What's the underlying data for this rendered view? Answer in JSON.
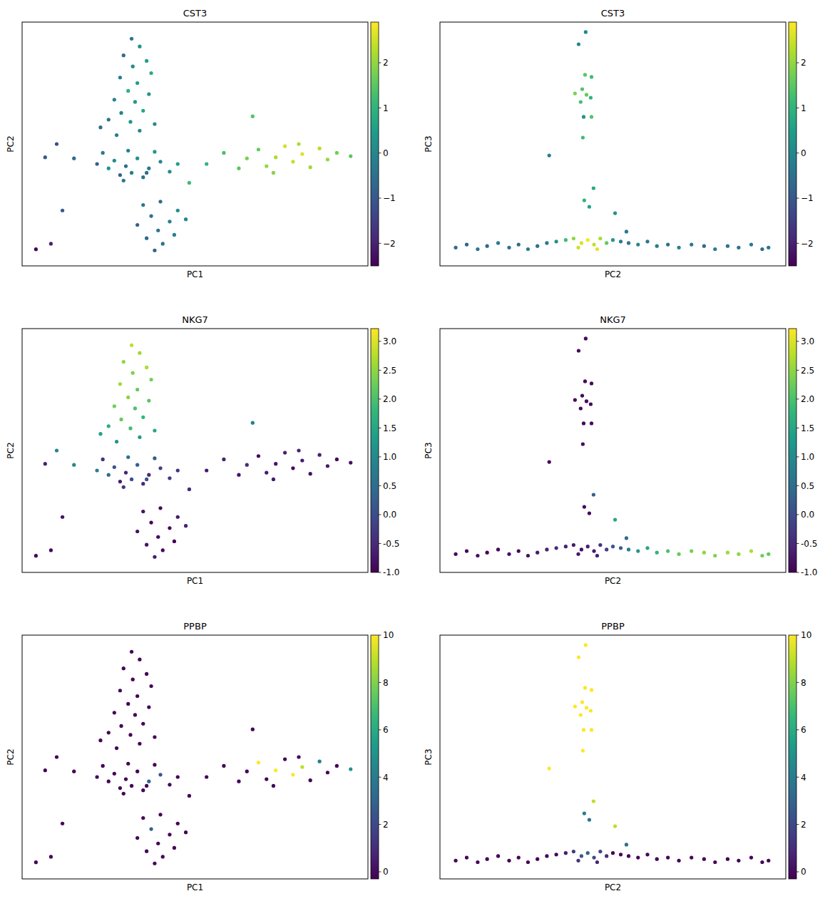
{
  "chart_data": [
    {
      "type": "scatter",
      "title": "CST3",
      "x_label": "PC1",
      "y_label": "PC2",
      "tick_labels": false,
      "xlim": [
        -6,
        24
      ],
      "ylim": [
        -10,
        12
      ],
      "x": [
        3.5,
        4.2,
        2.8,
        4.8,
        3.6,
        5.2,
        2.5,
        4.0,
        3.2,
        5.0,
        2.0,
        3.8,
        4.5,
        2.6,
        1.5,
        3.4,
        5.5,
        0.8,
        4.2,
        2.2,
        1.0,
        2.0,
        3.0,
        4.0,
        5.0,
        6.0,
        2.5,
        3.5,
        4.5,
        1.5,
        0.5,
        6.8,
        3.2,
        5.5,
        -1.5,
        -3.0,
        -4.0,
        7.5,
        2.8,
        4.8,
        4.5,
        6.0,
        7.5,
        5.2,
        6.8,
        4.0,
        5.8,
        7.2,
        4.8,
        6.2,
        5.5,
        8.2,
        10.0,
        11.5,
        12.8,
        13.5,
        14.5,
        15.2,
        16.0,
        16.8,
        17.5,
        18.3,
        19.0,
        19.8,
        20.5,
        21.3,
        22.5,
        15.8,
        18.0,
        8.5,
        14.0,
        -4.8,
        -3.5,
        -2.5
      ],
      "y": [
        10.5,
        9.8,
        9.0,
        8.5,
        8.0,
        7.4,
        7.0,
        6.5,
        5.8,
        5.5,
        5.0,
        4.8,
        4.0,
        3.8,
        3.2,
        3.0,
        2.8,
        2.5,
        2.2,
        1.8,
        0.2,
        -0.5,
        -1.0,
        -0.3,
        -1.2,
        -0.6,
        -1.8,
        -1.6,
        -2.0,
        -1.2,
        -0.8,
        -1.5,
        0.4,
        0.3,
        -0.3,
        1.0,
        -0.2,
        -0.8,
        -2.3,
        -1.6,
        -4.5,
        -4.2,
        -5.0,
        -5.5,
        -6.0,
        -6.3,
        -6.8,
        -7.2,
        -7.5,
        -8.0,
        -8.6,
        -5.8,
        -0.8,
        0.2,
        -1.2,
        -0.3,
        0.5,
        -1.0,
        -0.2,
        0.8,
        -0.6,
        0.1,
        -1.1,
        0.6,
        -0.4,
        0.2,
        -0.1,
        -1.6,
        1.0,
        -2.5,
        3.5,
        -8.5,
        -8.0,
        -5.0
      ],
      "values": [
        -0.4,
        0.2,
        -0.6,
        0.6,
        0.1,
        0.8,
        -0.3,
        0.5,
        0.9,
        0.3,
        -0.2,
        0.4,
        0.7,
        -0.1,
        -0.5,
        0.3,
        0.1,
        -0.6,
        0.0,
        -0.2,
        -0.3,
        0.1,
        -0.6,
        0.2,
        -0.4,
        0.0,
        -0.8,
        -0.2,
        -0.5,
        0.3,
        -0.9,
        0.1,
        -0.1,
        0.4,
        -0.7,
        -1.2,
        -1.0,
        0.5,
        -0.3,
        -0.6,
        -0.3,
        -0.6,
        0.1,
        -0.5,
        -0.2,
        -0.8,
        -0.4,
        -0.1,
        -0.7,
        -0.5,
        -0.9,
        0.0,
        1.0,
        1.3,
        1.5,
        1.8,
        1.6,
        2.0,
        2.2,
        2.5,
        2.4,
        2.6,
        2.1,
        2.3,
        2.0,
        1.7,
        1.5,
        1.9,
        2.2,
        1.2,
        1.4,
        -2.4,
        -2.0,
        -1.0
      ],
      "color_range": [
        -2.5,
        2.9
      ],
      "color_ticks": [
        -2,
        -1,
        0,
        1,
        2
      ]
    },
    {
      "type": "scatter",
      "title": "CST3",
      "x_label": "PC2",
      "y_label": "PC3",
      "tick_labels": false,
      "xlim": [
        -10,
        12
      ],
      "ylim": [
        -2,
        14
      ],
      "x": [
        -9.0,
        -8.3,
        -7.6,
        -7.0,
        -6.3,
        -5.6,
        -5.0,
        -4.4,
        -3.8,
        -3.2,
        -2.6,
        -2.0,
        -1.5,
        -1.0,
        -0.6,
        -0.2,
        0.2,
        0.6,
        1.0,
        1.5,
        -1.2,
        0.0,
        2.0,
        2.6,
        3.2,
        3.8,
        4.5,
        5.2,
        6.0,
        6.8,
        7.5,
        8.3,
        9.0,
        9.8,
        10.5,
        10.9,
        -0.73,
        -1.18,
        -0.77,
        -0.36,
        -1.41,
        -0.95,
        -0.68,
        -1.05,
        -0.41,
        -0.86,
        -0.36,
        -0.91,
        -3.05,
        -0.23,
        -0.82,
        -0.5,
        1.14,
        1.86
      ],
      "y": [
        -0.8,
        -0.6,
        -0.9,
        -0.7,
        -0.5,
        -0.8,
        -0.6,
        -0.9,
        -0.7,
        -0.5,
        -0.4,
        -0.3,
        -0.2,
        -0.5,
        -0.3,
        -0.6,
        -0.2,
        -0.5,
        -0.3,
        -0.4,
        -0.8,
        -0.9,
        -0.5,
        -0.6,
        -0.4,
        -0.7,
        -0.6,
        -0.8,
        -0.6,
        -0.7,
        -0.9,
        -0.7,
        -0.8,
        -0.6,
        -0.9,
        -0.8,
        13.35,
        12.55,
        10.54,
        10.4,
        9.32,
        9.6,
        9.23,
        8.76,
        9.04,
        7.78,
        7.78,
        6.42,
        5.25,
        3.1,
        2.3,
        1.88,
        1.46,
        0.25
      ],
      "values": [
        -0.6,
        -0.8,
        -0.4,
        -0.7,
        -0.3,
        -0.5,
        -0.6,
        -0.2,
        -0.5,
        -0.4,
        0.2,
        1.2,
        2.0,
        2.6,
        2.8,
        2.4,
        2.2,
        1.6,
        0.4,
        -0.2,
        2.5,
        2.7,
        -0.3,
        0.0,
        -0.4,
        -0.2,
        -0.5,
        -0.1,
        -0.3,
        -0.6,
        -0.2,
        -0.4,
        -0.5,
        -0.3,
        -0.6,
        -0.4,
        0.0,
        0.0,
        1.5,
        1.2,
        1.8,
        1.4,
        1.6,
        1.3,
        1.0,
        0.3,
        1.4,
        1.2,
        -0.2,
        0.8,
        1.0,
        0.6,
        0.2,
        -0.3
      ],
      "color_range": [
        -2.5,
        2.9
      ],
      "color_ticks": [
        -2,
        -1,
        0,
        1,
        2
      ]
    },
    {
      "type": "scatter",
      "title": "NKG7",
      "x_label": "PC1",
      "y_label": "PC2",
      "tick_labels": false,
      "xlim": [
        -6,
        24
      ],
      "ylim": [
        -10,
        12
      ],
      "x": [
        3.5,
        4.2,
        2.8,
        4.8,
        3.6,
        5.2,
        2.5,
        4.0,
        3.2,
        5.0,
        2.0,
        3.8,
        4.5,
        2.6,
        1.5,
        3.4,
        5.5,
        0.8,
        4.2,
        2.2,
        1.0,
        2.0,
        3.0,
        4.0,
        5.0,
        6.0,
        2.5,
        3.5,
        4.5,
        1.5,
        0.5,
        6.8,
        3.2,
        5.5,
        -1.5,
        -3.0,
        -4.0,
        7.5,
        2.8,
        4.8,
        4.5,
        6.0,
        7.5,
        5.2,
        6.8,
        4.0,
        5.8,
        7.2,
        4.8,
        6.2,
        5.5,
        8.2,
        10.0,
        11.5,
        12.8,
        13.5,
        14.5,
        15.2,
        16.0,
        16.8,
        17.5,
        18.3,
        19.0,
        19.8,
        20.5,
        21.3,
        22.5,
        15.8,
        18.0,
        8.5,
        14.0,
        -4.8,
        -3.5,
        -2.5
      ],
      "y": [
        10.5,
        9.8,
        9.0,
        8.5,
        8.0,
        7.4,
        7.0,
        6.5,
        5.8,
        5.5,
        5.0,
        4.8,
        4.0,
        3.8,
        3.2,
        3.0,
        2.8,
        2.5,
        2.2,
        1.8,
        0.2,
        -0.5,
        -1.0,
        -0.3,
        -1.2,
        -0.6,
        -1.8,
        -1.6,
        -2.0,
        -1.2,
        -0.8,
        -1.5,
        0.4,
        0.3,
        -0.3,
        1.0,
        -0.2,
        -0.8,
        -2.3,
        -1.6,
        -4.5,
        -4.2,
        -5.0,
        -5.5,
        -6.0,
        -6.3,
        -6.8,
        -7.2,
        -7.5,
        -8.0,
        -8.6,
        -5.8,
        -0.8,
        0.2,
        -1.2,
        -0.3,
        0.5,
        -1.0,
        -0.2,
        0.8,
        -0.6,
        0.1,
        -1.1,
        0.6,
        -0.4,
        0.2,
        -0.1,
        -1.6,
        1.0,
        -2.5,
        3.5,
        -8.5,
        -8.0,
        -5.0
      ],
      "values": [
        2.8,
        2.6,
        2.5,
        2.7,
        2.4,
        2.3,
        2.6,
        2.2,
        2.5,
        2.1,
        2.3,
        2.0,
        1.8,
        2.2,
        1.6,
        1.9,
        1.5,
        1.4,
        1.3,
        1.2,
        -0.4,
        0.1,
        -0.6,
        0.3,
        -0.5,
        -0.2,
        -0.7,
        0.0,
        -0.5,
        0.5,
        0.8,
        -0.3,
        0.6,
        0.2,
        1.0,
        0.9,
        -0.6,
        -0.4,
        -0.3,
        0.1,
        -0.8,
        -0.9,
        -0.7,
        -1.0,
        -0.9,
        -0.8,
        -0.9,
        -1.0,
        -0.8,
        -0.9,
        -0.7,
        -0.6,
        -0.7,
        -0.6,
        -0.8,
        -0.5,
        -0.9,
        -0.7,
        -0.8,
        -0.6,
        -0.9,
        -0.7,
        -0.8,
        -0.6,
        -0.7,
        -0.9,
        -0.8,
        -0.7,
        -0.6,
        -0.5,
        0.8,
        -0.9,
        -0.9,
        -0.8
      ],
      "color_range": [
        -1.0,
        3.22
      ],
      "color_ticks": [
        {
          "value": -1,
          "label": "-1.0"
        },
        {
          "value": -0.5,
          "label": "-0.5"
        },
        {
          "value": 0,
          "label": "0.0"
        },
        {
          "value": 0.5,
          "label": "0.5"
        },
        {
          "value": 1,
          "label": "1.0"
        },
        {
          "value": 1.5,
          "label": "1.5"
        },
        {
          "value": 2,
          "label": "2.0"
        },
        {
          "value": 2.5,
          "label": "2.5"
        },
        {
          "value": 3,
          "label": "3.0"
        }
      ]
    },
    {
      "type": "scatter",
      "title": "NKG7",
      "x_label": "PC2",
      "y_label": "PC3",
      "tick_labels": false,
      "xlim": [
        -10,
        12
      ],
      "ylim": [
        -2,
        14
      ],
      "x": [
        -9.0,
        -8.3,
        -7.6,
        -7.0,
        -6.3,
        -5.6,
        -5.0,
        -4.4,
        -3.8,
        -3.2,
        -2.6,
        -2.0,
        -1.5,
        -1.0,
        -0.6,
        -0.2,
        0.2,
        0.6,
        1.0,
        1.5,
        -1.2,
        0.0,
        2.0,
        2.6,
        3.2,
        3.8,
        4.5,
        5.2,
        6.0,
        6.8,
        7.5,
        8.3,
        9.0,
        9.8,
        10.5,
        10.9,
        -0.73,
        -1.18,
        -0.77,
        -0.36,
        -1.41,
        -0.95,
        -0.68,
        -1.05,
        -0.41,
        -0.86,
        -0.36,
        -0.91,
        -3.05,
        -0.23,
        -0.82,
        -0.5,
        1.14,
        1.86
      ],
      "y": [
        -0.8,
        -0.6,
        -0.9,
        -0.7,
        -0.5,
        -0.8,
        -0.6,
        -0.9,
        -0.7,
        -0.5,
        -0.4,
        -0.3,
        -0.2,
        -0.5,
        -0.3,
        -0.6,
        -0.2,
        -0.5,
        -0.3,
        -0.4,
        -0.8,
        -0.9,
        -0.5,
        -0.6,
        -0.4,
        -0.7,
        -0.6,
        -0.8,
        -0.6,
        -0.7,
        -0.9,
        -0.7,
        -0.8,
        -0.6,
        -0.9,
        -0.8,
        13.35,
        12.55,
        10.54,
        10.4,
        9.32,
        9.6,
        9.23,
        8.76,
        9.04,
        7.78,
        7.78,
        6.42,
        5.25,
        3.1,
        2.3,
        1.88,
        1.46,
        0.25
      ],
      "values": [
        -0.9,
        -0.9,
        -0.8,
        -1.0,
        -0.9,
        -0.8,
        -0.9,
        -0.8,
        -0.7,
        -0.6,
        -0.5,
        -0.6,
        -0.7,
        -0.8,
        -0.6,
        -0.7,
        -0.4,
        -0.2,
        0.2,
        0.3,
        -0.7,
        -0.6,
        0.8,
        1.2,
        1.5,
        1.8,
        2.0,
        2.2,
        2.3,
        2.5,
        2.4,
        2.6,
        2.5,
        2.7,
        2.3,
        2.2,
        -0.9,
        -0.9,
        -0.9,
        -0.9,
        -0.9,
        -0.9,
        -0.9,
        -0.9,
        -0.9,
        -0.9,
        -0.9,
        -0.9,
        -0.9,
        0.3,
        -0.9,
        -0.9,
        1.5,
        0.5
      ],
      "color_range": [
        -1.0,
        3.22
      ],
      "color_ticks": [
        {
          "value": -1,
          "label": "-1.0"
        },
        {
          "value": -0.5,
          "label": "-0.5"
        },
        {
          "value": 0,
          "label": "0.0"
        },
        {
          "value": 0.5,
          "label": "0.5"
        },
        {
          "value": 1,
          "label": "1.0"
        },
        {
          "value": 1.5,
          "label": "1.5"
        },
        {
          "value": 2,
          "label": "2.0"
        },
        {
          "value": 2.5,
          "label": "2.5"
        },
        {
          "value": 3,
          "label": "3.0"
        }
      ]
    },
    {
      "type": "scatter",
      "title": "PPBP",
      "x_label": "PC1",
      "y_label": "PC2",
      "tick_labels": false,
      "xlim": [
        -6,
        24
      ],
      "ylim": [
        -10,
        12
      ],
      "x": [
        3.5,
        4.2,
        2.8,
        4.8,
        3.6,
        5.2,
        2.5,
        4.0,
        3.2,
        5.0,
        2.0,
        3.8,
        4.5,
        2.6,
        1.5,
        3.4,
        5.5,
        0.8,
        4.2,
        2.2,
        1.0,
        2.0,
        3.0,
        4.0,
        5.0,
        6.0,
        2.5,
        3.5,
        4.5,
        1.5,
        0.5,
        6.8,
        3.2,
        5.5,
        -1.5,
        -3.0,
        -4.0,
        7.5,
        2.8,
        4.8,
        4.5,
        6.0,
        7.5,
        5.2,
        6.8,
        4.0,
        5.8,
        7.2,
        4.8,
        6.2,
        5.5,
        8.2,
        10.0,
        11.5,
        12.8,
        13.5,
        14.5,
        15.2,
        16.0,
        16.8,
        17.5,
        18.3,
        19.0,
        19.8,
        20.5,
        21.3,
        22.5,
        15.8,
        18.0,
        8.5,
        14.0,
        -4.8,
        -3.5,
        -2.5
      ],
      "y": [
        10.5,
        9.8,
        9.0,
        8.5,
        8.0,
        7.4,
        7.0,
        6.5,
        5.8,
        5.5,
        5.0,
        4.8,
        4.0,
        3.8,
        3.2,
        3.0,
        2.8,
        2.5,
        2.2,
        1.8,
        0.2,
        -0.5,
        -1.0,
        -0.3,
        -1.2,
        -0.6,
        -1.8,
        -1.6,
        -2.0,
        -1.2,
        -0.8,
        -1.5,
        0.4,
        0.3,
        -0.3,
        1.0,
        -0.2,
        -0.8,
        -2.3,
        -1.6,
        -4.5,
        -4.2,
        -5.0,
        -5.5,
        -6.0,
        -6.3,
        -6.8,
        -7.2,
        -7.5,
        -8.0,
        -8.6,
        -5.8,
        -0.8,
        0.2,
        -1.2,
        -0.3,
        0.5,
        -1.0,
        -0.2,
        0.8,
        -0.6,
        0.1,
        -1.1,
        0.6,
        -0.4,
        0.2,
        -0.1,
        -1.6,
        1.0,
        -2.5,
        3.5,
        -8.5,
        -8.0,
        -5.0
      ],
      "values": [
        -0.2,
        -0.2,
        -0.2,
        -0.2,
        -0.2,
        -0.2,
        -0.2,
        -0.2,
        -0.2,
        -0.2,
        -0.2,
        -0.2,
        -0.2,
        -0.2,
        -0.2,
        -0.2,
        -0.2,
        -0.2,
        -0.2,
        -0.2,
        -0.2,
        -0.2,
        -0.2,
        -0.2,
        3.0,
        2.5,
        -0.2,
        -0.2,
        -0.2,
        -0.2,
        -0.2,
        -0.2,
        -0.2,
        -0.2,
        -0.2,
        -0.2,
        -0.2,
        -0.2,
        -0.2,
        -0.2,
        -0.2,
        -0.2,
        -0.2,
        3.0,
        -0.2,
        -0.2,
        -0.2,
        -0.2,
        -0.2,
        -0.2,
        -0.2,
        -0.2,
        -0.2,
        -0.2,
        -0.2,
        -0.2,
        10,
        -0.2,
        10,
        -0.2,
        10,
        9,
        -0.2,
        4,
        -0.2,
        -0.2,
        5,
        -0.2,
        -0.2,
        -0.2,
        -0.2,
        -0.2,
        -0.2,
        -0.2
      ],
      "color_range": [
        -0.3,
        10
      ],
      "color_ticks": [
        0,
        2,
        4,
        6,
        8,
        10
      ]
    },
    {
      "type": "scatter",
      "title": "PPBP",
      "x_label": "PC2",
      "y_label": "PC3",
      "tick_labels": false,
      "xlim": [
        -10,
        12
      ],
      "ylim": [
        -2,
        14
      ],
      "x": [
        -9.0,
        -8.3,
        -7.6,
        -7.0,
        -6.3,
        -5.6,
        -5.0,
        -4.4,
        -3.8,
        -3.2,
        -2.6,
        -2.0,
        -1.5,
        -1.0,
        -0.6,
        -0.2,
        0.2,
        0.6,
        1.0,
        1.5,
        -1.2,
        0.0,
        2.0,
        2.6,
        3.2,
        3.8,
        4.5,
        5.2,
        6.0,
        6.8,
        7.5,
        8.3,
        9.0,
        9.8,
        10.5,
        10.9,
        -0.73,
        -1.18,
        -0.77,
        -0.36,
        -1.41,
        -0.95,
        -0.68,
        -1.05,
        -0.41,
        -0.86,
        -0.36,
        -0.91,
        -3.05,
        -0.23,
        -0.82,
        -0.5,
        1.14,
        1.86
      ],
      "y": [
        -0.8,
        -0.6,
        -0.9,
        -0.7,
        -0.5,
        -0.8,
        -0.6,
        -0.9,
        -0.7,
        -0.5,
        -0.4,
        -0.3,
        -0.2,
        -0.5,
        -0.3,
        -0.6,
        -0.2,
        -0.5,
        -0.3,
        -0.4,
        -0.8,
        -0.9,
        -0.5,
        -0.6,
        -0.4,
        -0.7,
        -0.6,
        -0.8,
        -0.6,
        -0.7,
        -0.9,
        -0.7,
        -0.8,
        -0.6,
        -0.9,
        -0.8,
        13.35,
        12.55,
        10.54,
        10.4,
        9.32,
        9.6,
        9.23,
        8.76,
        9.04,
        7.78,
        7.78,
        6.42,
        5.25,
        3.1,
        2.3,
        1.88,
        1.46,
        0.25
      ],
      "values": [
        -0.2,
        -0.2,
        -0.2,
        -0.2,
        -0.2,
        -0.2,
        -0.2,
        -0.2,
        -0.2,
        -0.2,
        -0.2,
        0.5,
        1.5,
        2.5,
        3.0,
        2.0,
        1.8,
        1.0,
        -0.2,
        -0.2,
        1.2,
        0.8,
        -0.2,
        -0.2,
        -0.2,
        -0.2,
        -0.2,
        -0.2,
        -0.2,
        -0.2,
        -0.2,
        -0.2,
        -0.2,
        -0.2,
        -0.2,
        -0.2,
        10,
        10,
        10,
        10,
        10,
        10,
        10,
        10,
        10,
        10,
        10,
        10,
        10,
        9,
        4,
        3.5,
        9,
        3.5
      ],
      "color_range": [
        -0.3,
        10
      ],
      "color_ticks": [
        0,
        2,
        4,
        6,
        8,
        10
      ]
    }
  ]
}
